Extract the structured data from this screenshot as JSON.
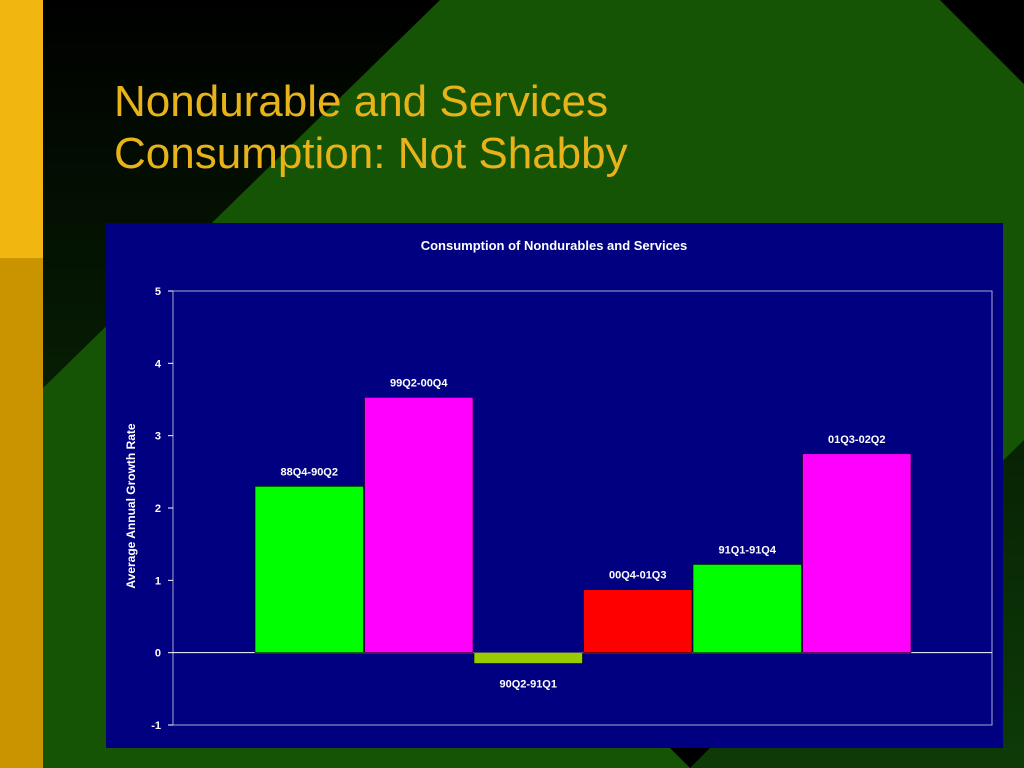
{
  "slide": {
    "title": "Nondurable and Services\nConsumption:  Not Shabby"
  },
  "colors": {
    "background": "#0d3b07",
    "accent_green": "#145404",
    "accent_gold": "#e8b31a",
    "chart_panel": "#000080"
  },
  "chart_data": {
    "type": "bar",
    "title": "Consumption of Nondurables and Services",
    "xlabel": "",
    "ylabel": "Average Annual Growth Rate",
    "ylim": [
      -1,
      5
    ],
    "yticks": [
      5,
      4,
      3,
      2,
      1,
      0,
      -1
    ],
    "grid": false,
    "legend": "none",
    "categories": [
      "88Q4-90Q2",
      "99Q2-00Q4",
      "90Q2-91Q1",
      "00Q4-01Q3",
      "91Q1-91Q4",
      "01Q3-02Q2"
    ],
    "values": [
      2.3,
      3.53,
      -0.15,
      0.87,
      1.22,
      2.75
    ],
    "bar_colors": [
      "#00ff00",
      "#ff00ff",
      "#99cc00",
      "#ff0000",
      "#00ff00",
      "#ff00ff"
    ]
  }
}
